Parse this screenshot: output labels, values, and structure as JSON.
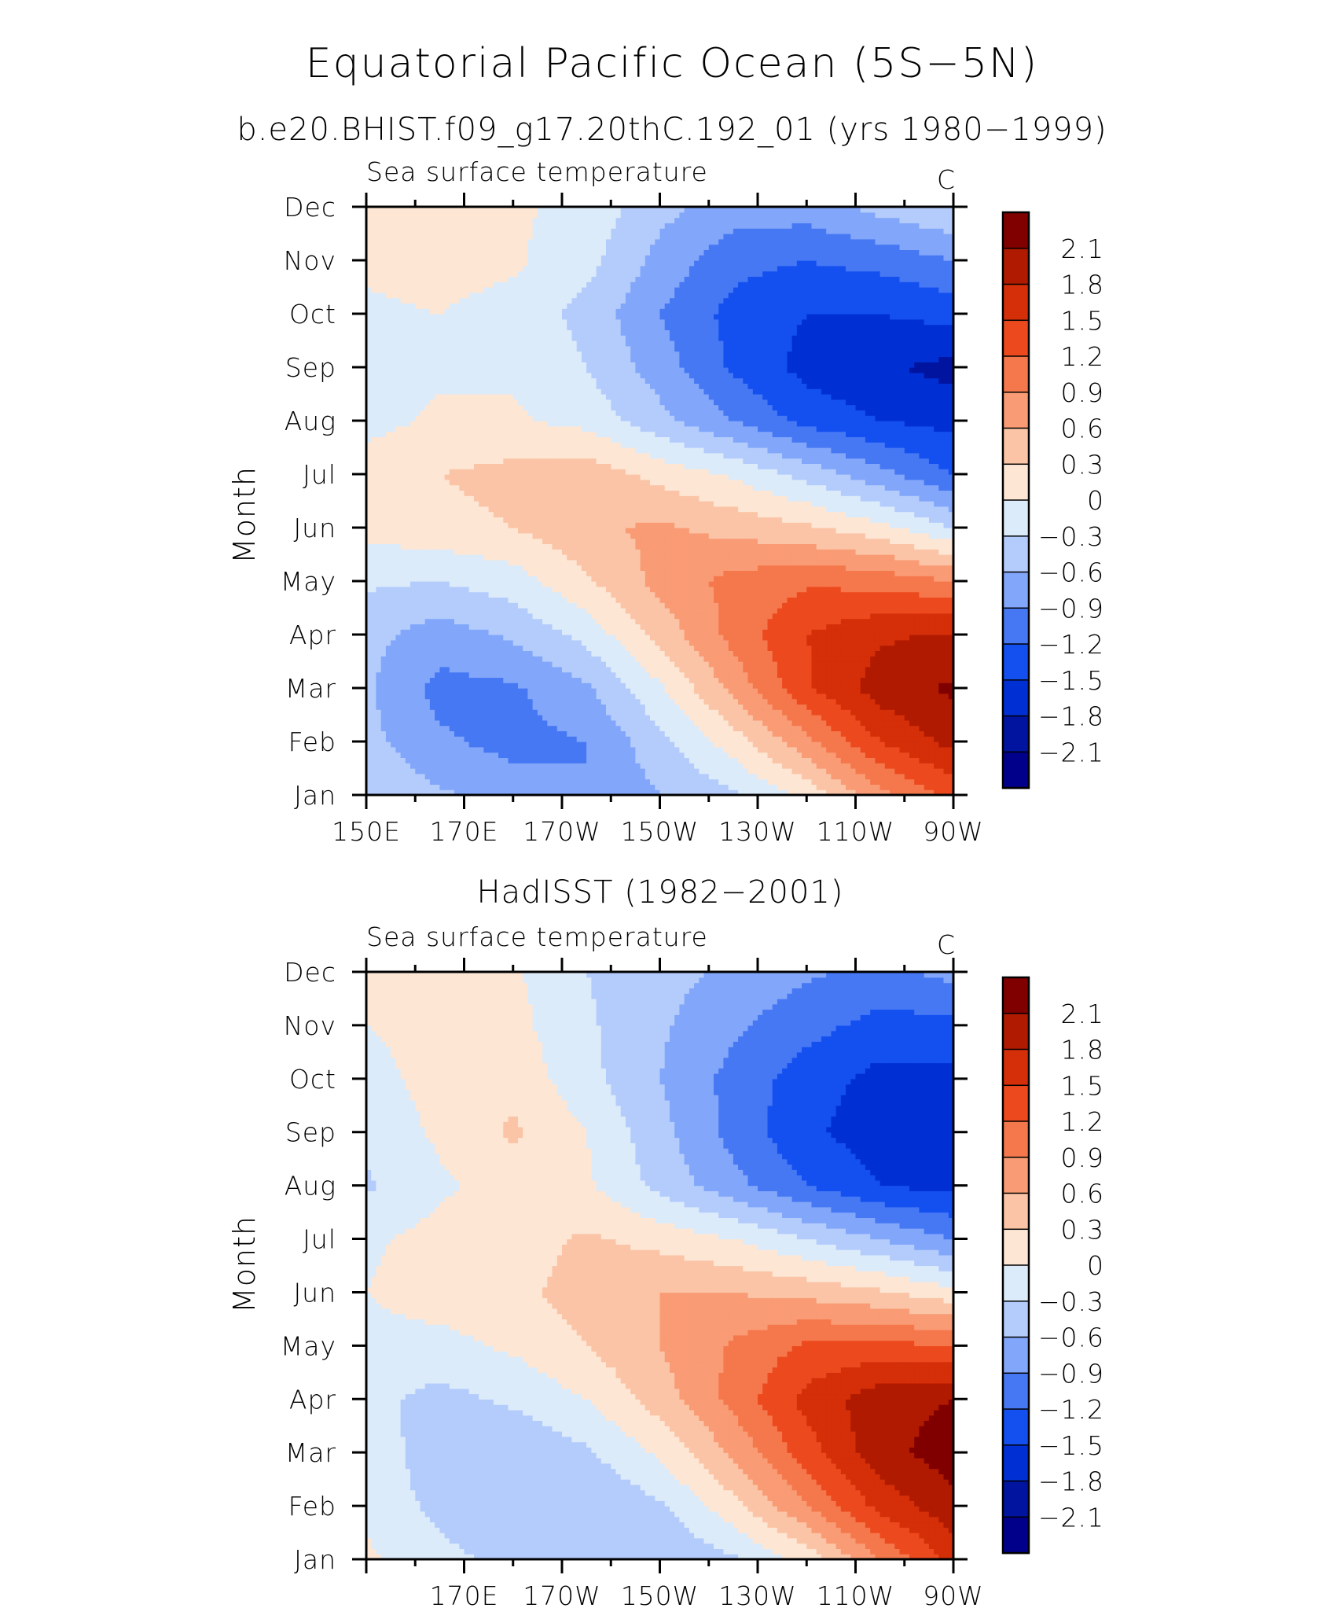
{
  "title": "Equatorial Pacific Ocean (5S−5N)",
  "chart_data": [
    {
      "type": "heatmap",
      "heading": "b.e20.BHIST.f09_g17.20thC.192_01 (yrs 1980−1999)",
      "left_label": "Sea surface temperature",
      "units": "C",
      "ylabel": "Month",
      "xlabel": "",
      "x_ticks": [
        "150E",
        "170E",
        "170W",
        "150W",
        "130W",
        "110W",
        "90W"
      ],
      "y_ticks": [
        "Jan",
        "Feb",
        "Mar",
        "Apr",
        "May",
        "Jun",
        "Jul",
        "Aug",
        "Sep",
        "Oct",
        "Nov",
        "Dec"
      ],
      "xlim": [
        150,
        270
      ],
      "ylim": [
        1,
        12
      ],
      "colorbar_levels": [
        "2.1",
        "1.8",
        "1.5",
        "1.2",
        "0.9",
        "0.6",
        "0.3",
        "0",
        "−0.3",
        "−0.6",
        "−0.9",
        "−1.2",
        "−1.5",
        "−1.8",
        "−2.1"
      ],
      "x": [
        150,
        165,
        180,
        195,
        210,
        225,
        240,
        255,
        270
      ],
      "z": [
        [
          -0.35,
          -0.55,
          -0.75,
          -0.9,
          -0.6,
          -0.35,
          0.1,
          0.8,
          1.3
        ],
        [
          -0.5,
          -0.85,
          -1.0,
          -0.9,
          -0.4,
          0.15,
          0.8,
          1.5,
          1.9
        ],
        [
          -0.55,
          -1.0,
          -0.95,
          -0.65,
          -0.05,
          0.7,
          1.45,
          1.95,
          2.15
        ],
        [
          -0.5,
          -0.75,
          -0.55,
          -0.2,
          0.4,
          1.0,
          1.5,
          1.75,
          1.85
        ],
        [
          -0.25,
          -0.3,
          -0.15,
          0.25,
          0.7,
          1.0,
          1.15,
          1.1,
          0.9
        ],
        [
          0.1,
          0.2,
          0.3,
          0.55,
          0.65,
          0.5,
          0.35,
          0.1,
          -0.3
        ],
        [
          0.15,
          0.3,
          0.4,
          0.5,
          0.2,
          -0.05,
          -0.4,
          -0.8,
          -1.2
        ],
        [
          -0.1,
          0.05,
          0.05,
          -0.1,
          -0.5,
          -0.9,
          -1.3,
          -1.5,
          -1.6
        ],
        [
          -0.1,
          -0.05,
          -0.05,
          -0.3,
          -0.75,
          -1.25,
          -1.6,
          -1.75,
          -1.9
        ],
        [
          -0.05,
          0.0,
          -0.1,
          -0.4,
          -0.9,
          -1.3,
          -1.5,
          -1.5,
          -1.4
        ],
        [
          0.05,
          0.1,
          0.05,
          -0.2,
          -0.7,
          -1.1,
          -1.2,
          -1.1,
          -0.9
        ],
        [
          0.3,
          0.2,
          0.05,
          -0.1,
          -0.5,
          -0.75,
          -0.75,
          -0.5,
          -0.3
        ]
      ]
    },
    {
      "type": "heatmap",
      "heading": "HadISST (1982−2001)",
      "left_label": "Sea surface temperature",
      "units": "C",
      "ylabel": "Month",
      "xlabel": "",
      "x_ticks": [
        "170E",
        "170W",
        "150W",
        "130W",
        "110W",
        "90W"
      ],
      "y_ticks": [
        "Jan",
        "Feb",
        "Mar",
        "Apr",
        "May",
        "Jun",
        "Jul",
        "Aug",
        "Sep",
        "Oct",
        "Nov",
        "Dec"
      ],
      "xlim": [
        150,
        270
      ],
      "ylim": [
        1,
        12
      ],
      "colorbar_levels": [
        "2.1",
        "1.8",
        "1.5",
        "1.2",
        "0.9",
        "0.6",
        "0.3",
        "0",
        "−0.3",
        "−0.6",
        "−0.9",
        "−1.2",
        "−1.5",
        "−1.8",
        "−2.1"
      ],
      "x": [
        150,
        165,
        180,
        195,
        210,
        225,
        240,
        255,
        270
      ],
      "z": [
        [
          0.05,
          -0.2,
          -0.4,
          -0.55,
          -0.6,
          -0.35,
          0.1,
          0.9,
          1.6
        ],
        [
          -0.05,
          -0.4,
          -0.55,
          -0.6,
          -0.35,
          0.2,
          0.9,
          1.6,
          2.0
        ],
        [
          -0.1,
          -0.5,
          -0.55,
          -0.35,
          0.05,
          0.65,
          1.35,
          2.0,
          2.25
        ],
        [
          -0.2,
          -0.4,
          -0.25,
          0.0,
          0.45,
          1.0,
          1.6,
          2.0,
          2.1
        ],
        [
          -0.1,
          -0.1,
          0.05,
          0.3,
          0.6,
          0.95,
          1.25,
          1.3,
          1.2
        ],
        [
          0.0,
          0.15,
          0.2,
          0.45,
          0.6,
          0.6,
          0.5,
          0.35,
          0.1
        ],
        [
          -0.05,
          0.1,
          0.15,
          0.35,
          0.2,
          0.0,
          -0.3,
          -0.6,
          -0.9
        ],
        [
          -0.35,
          -0.05,
          0.1,
          0.05,
          -0.4,
          -0.8,
          -1.2,
          -1.5,
          -1.6
        ],
        [
          -0.2,
          0.05,
          0.35,
          0.0,
          -0.5,
          -1.0,
          -1.45,
          -1.65,
          -1.7
        ],
        [
          -0.1,
          0.1,
          0.2,
          -0.2,
          -0.6,
          -1.0,
          -1.35,
          -1.6,
          -1.6
        ],
        [
          0.0,
          0.1,
          0.1,
          -0.25,
          -0.55,
          -0.85,
          -1.1,
          -1.3,
          -1.3
        ],
        [
          0.1,
          0.1,
          0.05,
          -0.3,
          -0.5,
          -0.65,
          -0.85,
          -1.0,
          -0.8
        ]
      ]
    }
  ],
  "colors": {
    "levels": [
      "#00008b",
      "#0014a0",
      "#0030d4",
      "#1450f0",
      "#4678f4",
      "#82a6fa",
      "#b4ccfc",
      "#dcebfa",
      "#fde6d4",
      "#fbc4a6",
      "#f99b74",
      "#f5784c",
      "#ec4a1e",
      "#d42f08",
      "#b01a00",
      "#800000"
    ],
    "boundaries": [
      -2.1,
      -1.8,
      -1.5,
      -1.2,
      -0.9,
      -0.6,
      -0.3,
      0,
      0.3,
      0.6,
      0.9,
      1.2,
      1.5,
      1.8,
      2.1
    ]
  }
}
